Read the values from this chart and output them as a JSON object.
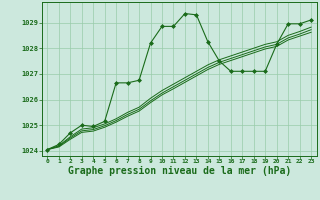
{
  "bg_color": "#cce8dd",
  "grid_color": "#99ccaa",
  "line_color": "#1a6b1a",
  "marker_color": "#1a6b1a",
  "xlabel": "Graphe pression niveau de la mer (hPa)",
  "xlabel_fontsize": 7,
  "xlim": [
    -0.5,
    23.5
  ],
  "ylim": [
    1023.8,
    1029.8
  ],
  "xticks": [
    0,
    1,
    2,
    3,
    4,
    5,
    6,
    7,
    8,
    9,
    10,
    11,
    12,
    13,
    14,
    15,
    16,
    17,
    18,
    19,
    20,
    21,
    22,
    23
  ],
  "yticks": [
    1024,
    1025,
    1026,
    1027,
    1028,
    1029
  ],
  "series1_x": [
    0,
    1,
    2,
    3,
    4,
    5,
    6,
    7,
    8,
    9,
    10,
    11,
    12,
    13,
    14,
    15,
    16,
    17,
    18,
    19,
    20,
    21,
    22,
    23
  ],
  "series1_y": [
    1024.05,
    1024.25,
    1024.7,
    1025.0,
    1024.95,
    1025.15,
    1026.65,
    1026.65,
    1026.75,
    1028.2,
    1028.85,
    1028.85,
    1029.35,
    1029.3,
    1028.25,
    1027.5,
    1027.1,
    1027.1,
    1027.1,
    1027.1,
    1028.15,
    1028.95,
    1028.95,
    1029.1
  ],
  "series2_x": [
    0,
    1,
    2,
    3,
    4,
    5,
    6,
    7,
    8,
    9,
    10,
    11,
    12,
    13,
    14,
    15,
    16,
    17,
    18,
    19,
    20,
    21,
    22,
    23
  ],
  "series2_y": [
    1024.05,
    1024.2,
    1024.55,
    1024.85,
    1024.9,
    1025.05,
    1025.25,
    1025.5,
    1025.7,
    1026.05,
    1026.35,
    1026.6,
    1026.85,
    1027.1,
    1027.35,
    1027.55,
    1027.7,
    1027.85,
    1028.0,
    1028.15,
    1028.25,
    1028.5,
    1028.65,
    1028.82
  ],
  "series3_x": [
    0,
    1,
    2,
    3,
    4,
    5,
    6,
    7,
    8,
    9,
    10,
    11,
    12,
    13,
    14,
    15,
    16,
    17,
    18,
    19,
    20,
    21,
    22,
    23
  ],
  "series3_y": [
    1024.05,
    1024.18,
    1024.5,
    1024.78,
    1024.83,
    1024.98,
    1025.18,
    1025.42,
    1025.62,
    1025.95,
    1026.25,
    1026.5,
    1026.75,
    1027.0,
    1027.25,
    1027.45,
    1027.6,
    1027.75,
    1027.9,
    1028.05,
    1028.15,
    1028.4,
    1028.55,
    1028.72
  ],
  "series4_x": [
    0,
    1,
    2,
    3,
    4,
    5,
    6,
    7,
    8,
    9,
    10,
    11,
    12,
    13,
    14,
    15,
    16,
    17,
    18,
    19,
    20,
    21,
    22,
    23
  ],
  "series4_y": [
    1024.05,
    1024.15,
    1024.45,
    1024.72,
    1024.77,
    1024.92,
    1025.12,
    1025.35,
    1025.55,
    1025.88,
    1026.18,
    1026.42,
    1026.67,
    1026.92,
    1027.17,
    1027.37,
    1027.52,
    1027.67,
    1027.82,
    1027.97,
    1028.07,
    1028.32,
    1028.47,
    1028.62
  ]
}
